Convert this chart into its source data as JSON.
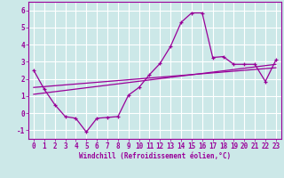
{
  "x_data": [
    0,
    1,
    2,
    3,
    4,
    5,
    6,
    7,
    8,
    9,
    10,
    11,
    12,
    13,
    14,
    15,
    16,
    17,
    18,
    19,
    20,
    21,
    22,
    23
  ],
  "y_main": [
    2.5,
    1.4,
    0.5,
    -0.2,
    -0.3,
    -1.1,
    -0.3,
    -0.25,
    -0.2,
    1.05,
    1.5,
    2.25,
    2.9,
    3.9,
    5.3,
    5.85,
    5.85,
    3.25,
    3.3,
    2.85,
    2.85,
    2.85,
    1.85,
    3.1
  ],
  "line_x": [
    0,
    23
  ],
  "trend1_y": [
    1.5,
    2.65
  ],
  "trend2_y": [
    1.1,
    2.85
  ],
  "color": "#990099",
  "bg_color": "#cce8e8",
  "xlabel": "Windchill (Refroidissement éolien,°C)",
  "ylim": [
    -1.5,
    6.5
  ],
  "xlim": [
    -0.5,
    23.5
  ],
  "yticks": [
    -1,
    0,
    1,
    2,
    3,
    4,
    5,
    6
  ],
  "xticks": [
    0,
    1,
    2,
    3,
    4,
    5,
    6,
    7,
    8,
    9,
    10,
    11,
    12,
    13,
    14,
    15,
    16,
    17,
    18,
    19,
    20,
    21,
    22,
    23
  ],
  "tick_fontsize": 5.5,
  "xlabel_fontsize": 5.5
}
